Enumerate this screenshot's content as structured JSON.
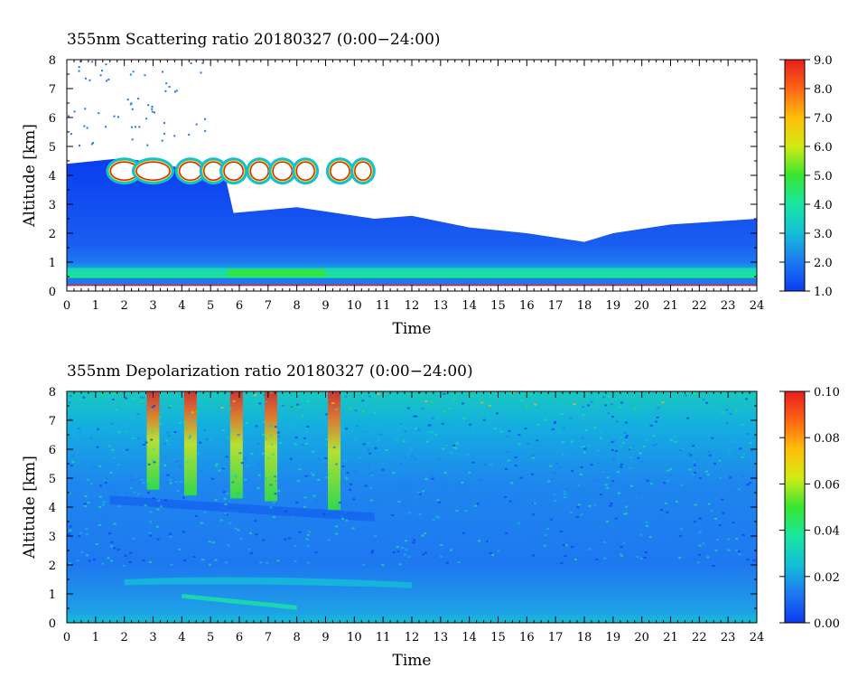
{
  "chart_data": [
    {
      "type": "heatmap",
      "title": "355nm Scattering ratio  20180327 (0:00−24:00)",
      "xlabel": "Time",
      "ylabel": "Altitude [km]",
      "xlim": [
        0,
        24
      ],
      "ylim": [
        0,
        8
      ],
      "x_ticks": [
        "0",
        "1",
        "2",
        "3",
        "4",
        "5",
        "6",
        "7",
        "8",
        "9",
        "10",
        "11",
        "12",
        "13",
        "14",
        "15",
        "16",
        "17",
        "18",
        "19",
        "20",
        "21",
        "22",
        "23",
        "24"
      ],
      "y_ticks": [
        "0",
        "1",
        "2",
        "3",
        "4",
        "5",
        "6",
        "7",
        "8"
      ],
      "colorbar": {
        "range": [
          1.0,
          9.0
        ],
        "ticks": [
          "1.0",
          "2.0",
          "3.0",
          "4.0",
          "5.0",
          "6.0",
          "7.0",
          "8.0",
          "9.0"
        ],
        "colors": [
          "#0a3cf0",
          "#1e78f0",
          "#14bed7",
          "#19e6a0",
          "#37e632",
          "#d2eb14",
          "#ffbe0a",
          "#ff6414",
          "#e61e1e"
        ]
      },
      "layers": {
        "surface_line_km": 0.2,
        "boundary_layer_top_km": [
          {
            "t": 0,
            "z": 4.4
          },
          {
            "t": 2,
            "z": 4.6
          },
          {
            "t": 5.5,
            "z": 4.0
          },
          {
            "t": 5.8,
            "z": 2.7
          },
          {
            "t": 8,
            "z": 2.9
          },
          {
            "t": 10.7,
            "z": 2.5
          },
          {
            "t": 12,
            "z": 2.6
          },
          {
            "t": 14,
            "z": 2.2
          },
          {
            "t": 16,
            "z": 2.0
          },
          {
            "t": 18,
            "z": 1.7
          },
          {
            "t": 19,
            "z": 2.0
          },
          {
            "t": 21,
            "z": 2.3
          },
          {
            "t": 24,
            "z": 2.5
          }
        ],
        "cloud_base_km": 3.6,
        "cloud_top_km": 4.6,
        "cloud_extent_time": [
          1.0,
          10.8
        ]
      }
    },
    {
      "type": "heatmap",
      "title": "355nm Depolarization ratio  20180327 (0:00−24:00)",
      "xlabel": "Time",
      "ylabel": "Altitude [km]",
      "xlim": [
        0,
        24
      ],
      "ylim": [
        0,
        8
      ],
      "x_ticks": [
        "0",
        "1",
        "2",
        "3",
        "4",
        "5",
        "6",
        "7",
        "8",
        "9",
        "10",
        "11",
        "12",
        "13",
        "14",
        "15",
        "16",
        "17",
        "18",
        "19",
        "20",
        "21",
        "22",
        "23",
        "24"
      ],
      "y_ticks": [
        "0",
        "1",
        "2",
        "3",
        "4",
        "5",
        "6",
        "7",
        "8"
      ],
      "colorbar": {
        "range": [
          0.0,
          0.1
        ],
        "ticks": [
          "0.00",
          "0.02",
          "0.04",
          "0.06",
          "0.08",
          "0.10"
        ],
        "colors": [
          "#0a3cf0",
          "#1e78f0",
          "#14bed7",
          "#19e6a0",
          "#37e632",
          "#d2eb14",
          "#ffbe0a",
          "#ff6414",
          "#e61e1e"
        ]
      },
      "fall_streaks": [
        {
          "t": 3.0,
          "z_bottom": 4.6,
          "z_top": 8.0
        },
        {
          "t": 4.3,
          "z_bottom": 4.4,
          "z_top": 8.0
        },
        {
          "t": 5.9,
          "z_bottom": 4.3,
          "z_top": 8.0
        },
        {
          "t": 7.1,
          "z_bottom": 4.2,
          "z_top": 8.0
        },
        {
          "t": 9.3,
          "z_bottom": 3.9,
          "z_top": 8.0
        }
      ]
    }
  ]
}
